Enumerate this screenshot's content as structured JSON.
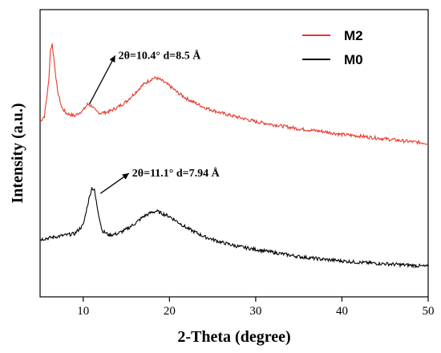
{
  "chart_data": {
    "type": "line",
    "xlabel": "2-Theta (degree)",
    "ylabel": "Intensity (a.u.)",
    "xlim": [
      5,
      50
    ],
    "x_ticks": [
      10,
      20,
      30,
      40,
      50
    ],
    "y_ticks_labels": false,
    "grid": false,
    "legend_position": "top-right",
    "series": [
      {
        "name": "M2",
        "color": "#e8392b",
        "points": [
          [
            5,
            0.61
          ],
          [
            5.5,
            0.63
          ],
          [
            6,
            0.75
          ],
          [
            6.2,
            0.86
          ],
          [
            6.4,
            0.88
          ],
          [
            6.6,
            0.83
          ],
          [
            7,
            0.72
          ],
          [
            7.5,
            0.66
          ],
          [
            8,
            0.64
          ],
          [
            9,
            0.63
          ],
          [
            10,
            0.65
          ],
          [
            10.5,
            0.67
          ],
          [
            11,
            0.665
          ],
          [
            11.5,
            0.645
          ],
          [
            12,
            0.64
          ],
          [
            13,
            0.645
          ],
          [
            14,
            0.66
          ],
          [
            15,
            0.68
          ],
          [
            16,
            0.71
          ],
          [
            17,
            0.74
          ],
          [
            18,
            0.76
          ],
          [
            18.5,
            0.762
          ],
          [
            19,
            0.755
          ],
          [
            20,
            0.735
          ],
          [
            21,
            0.71
          ],
          [
            22,
            0.69
          ],
          [
            24,
            0.66
          ],
          [
            26,
            0.64
          ],
          [
            28,
            0.625
          ],
          [
            30,
            0.61
          ],
          [
            32,
            0.6
          ],
          [
            35,
            0.585
          ],
          [
            38,
            0.575
          ],
          [
            40,
            0.565
          ],
          [
            42,
            0.56
          ],
          [
            45,
            0.55
          ],
          [
            48,
            0.54
          ],
          [
            50,
            0.535
          ]
        ]
      },
      {
        "name": "M0",
        "color": "#000000",
        "points": [
          [
            5,
            0.2
          ],
          [
            6,
            0.205
          ],
          [
            7,
            0.21
          ],
          [
            8,
            0.215
          ],
          [
            9,
            0.22
          ],
          [
            10,
            0.25
          ],
          [
            10.5,
            0.32
          ],
          [
            11,
            0.38
          ],
          [
            11.3,
            0.37
          ],
          [
            11.7,
            0.3
          ],
          [
            12.2,
            0.23
          ],
          [
            13,
            0.215
          ],
          [
            14,
            0.22
          ],
          [
            15,
            0.235
          ],
          [
            16,
            0.255
          ],
          [
            17,
            0.28
          ],
          [
            18,
            0.295
          ],
          [
            18.5,
            0.298
          ],
          [
            19,
            0.292
          ],
          [
            20,
            0.28
          ],
          [
            21,
            0.26
          ],
          [
            22,
            0.24
          ],
          [
            24,
            0.21
          ],
          [
            26,
            0.19
          ],
          [
            28,
            0.175
          ],
          [
            30,
            0.165
          ],
          [
            32,
            0.155
          ],
          [
            35,
            0.14
          ],
          [
            38,
            0.13
          ],
          [
            40,
            0.125
          ],
          [
            42,
            0.12
          ],
          [
            45,
            0.115
          ],
          [
            48,
            0.11
          ],
          [
            50,
            0.105
          ]
        ]
      }
    ],
    "annotations": [
      {
        "text": "2θ=10.4°  d=8.5 Å",
        "arrow_from": [
          10.7,
          0.67
        ],
        "arrow_to": [
          13.7,
          0.84
        ]
      },
      {
        "text": "2θ=11.1°  d=7.94 Å",
        "arrow_from": [
          12,
          0.36
        ],
        "arrow_to": [
          15.3,
          0.43
        ]
      }
    ]
  }
}
